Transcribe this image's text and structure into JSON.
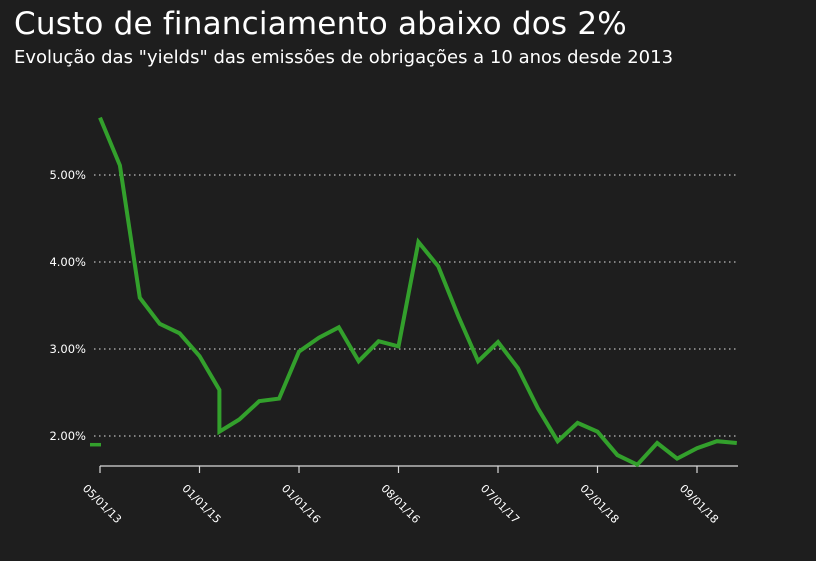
{
  "header": {
    "title": "Custo de financiamento abaixo dos 2%",
    "subtitle": "Evolução das \"yields\" das emissões de obrigações a 10 anos desde 2013"
  },
  "colors": {
    "background": "#1e1e1e",
    "line": "#33a02c",
    "grid": "#bdbdbd",
    "text": "#ffffff"
  },
  "chart_data": {
    "type": "line",
    "title": "",
    "xlabel": "",
    "ylabel": "",
    "grid": true,
    "y_ticks": [
      2,
      3,
      4,
      5
    ],
    "y_tick_labels": [
      "2.00%",
      "3.00%",
      "4.00%",
      "5.00%"
    ],
    "x_ticks": [
      0,
      1,
      2,
      3,
      4,
      5,
      6
    ],
    "x_tick_labels": [
      "05/01/13",
      "01/01/15",
      "01/01/16",
      "08/01/16",
      "07/01/17",
      "02/01/18",
      "09/01/18"
    ],
    "series": [
      {
        "x": [
          0,
          0.2,
          0.4,
          0.6,
          0.8,
          1.0,
          1.2,
          1.2,
          1.4,
          1.6,
          1.8,
          2.0,
          2.2,
          2.4,
          2.6,
          2.8,
          3.0,
          3.2,
          3.4,
          3.6,
          3.8,
          4.0,
          4.2,
          4.4,
          4.6,
          4.8,
          5.0,
          5.2,
          5.4,
          5.6,
          5.8,
          6.0,
          6.2,
          6.4
        ],
        "values": [
          5.66,
          5.11,
          3.59,
          3.29,
          3.18,
          2.92,
          2.53,
          2.05,
          2.19,
          2.4,
          2.43,
          2.97,
          3.13,
          3.25,
          2.86,
          3.09,
          3.03,
          4.23,
          3.95,
          3.38,
          2.86,
          3.08,
          2.78,
          2.32,
          1.94,
          2.15,
          2.05,
          1.78,
          1.67,
          1.92,
          1.74,
          1.86,
          1.94,
          1.92
        ]
      }
    ],
    "legend_marker_value": 1.9
  }
}
